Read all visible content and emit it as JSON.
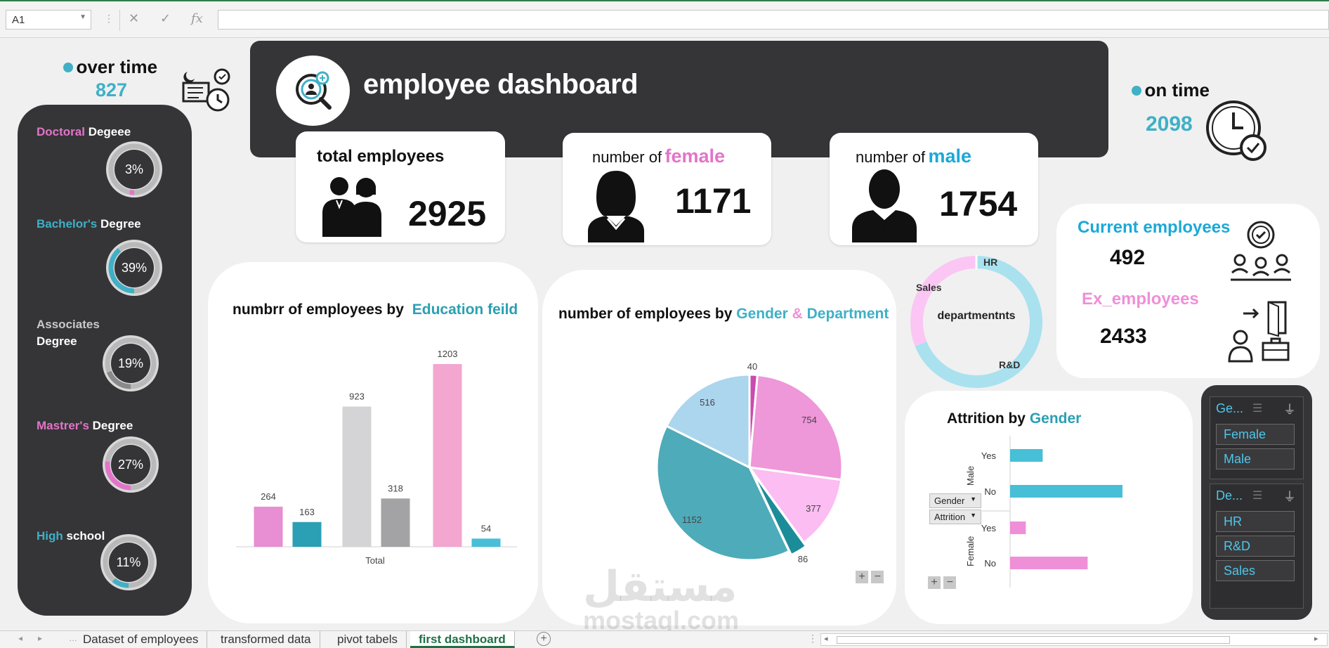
{
  "formula_bar": {
    "cell_ref": "A1",
    "cancel_glyph": "✕",
    "enter_glyph": "✓",
    "fx_label": "fx",
    "formula": ""
  },
  "kpis": {
    "overtime": {
      "label": "over time",
      "value": "827"
    },
    "ontime": {
      "label": "on time",
      "value": "2098"
    },
    "total": {
      "label": "total employees",
      "value": "2925"
    },
    "female": {
      "prefix": "number of",
      "highlight": "female",
      "value": "1171"
    },
    "male": {
      "prefix": "number of",
      "highlight": "male",
      "value": "1754"
    },
    "current": {
      "label": "Current employees",
      "value": "492"
    },
    "ex": {
      "label": "Ex_employees",
      "value": "2433"
    }
  },
  "banner": {
    "title": "employee dashboard"
  },
  "degrees": [
    {
      "first": "Doctoral",
      "second": "Degeee",
      "pct": "3%",
      "frac": 0.03,
      "color": "#e374c8",
      "first_color": "#e374c8"
    },
    {
      "first": "Bachelor's",
      "second": "Degree",
      "pct": "39%",
      "frac": 0.39,
      "color": "#3fb0c6",
      "first_color": "#3fb0c6"
    },
    {
      "first": "Associates",
      "second": "Degree",
      "pct": "19%",
      "frac": 0.19,
      "color": "#8a8a8a",
      "first_color": "#c9c9c9"
    },
    {
      "first": "Mastrer's",
      "second": "Degree",
      "pct": "27%",
      "frac": 0.27,
      "color": "#e374c8",
      "first_color": "#e374c8"
    },
    {
      "first": "High",
      "second": "school",
      "pct": "11%",
      "frac": 0.11,
      "color": "#3fb0c6",
      "first_color": "#3fb0c6"
    }
  ],
  "edu_chart": {
    "title_prefix": "numbrr of employees by",
    "title_highlight": "Education feild"
  },
  "gender_dept_chart": {
    "title_prefix": "number of employees by",
    "title_gender": "Gender",
    "title_amp": "&",
    "title_dept": "Department"
  },
  "dept_donut": {
    "center_label": "departmentnts"
  },
  "attrition": {
    "title_prefix": "Attrition by",
    "title_highlight": "Gender",
    "filters": [
      "Gender",
      "Attrition"
    ],
    "group_labels": [
      "Male",
      "Female"
    ],
    "row_labels": [
      "Yes",
      "No",
      "Yes",
      "No"
    ]
  },
  "slicers": {
    "gender": {
      "header": "Ge...",
      "items": [
        "Female",
        "Male"
      ]
    },
    "dept": {
      "header": "De...",
      "items": [
        "HR",
        "R&D",
        "Sales"
      ]
    }
  },
  "sheet_tabs": [
    "Dataset of employees",
    "transformed data",
    "pivot tabels",
    "first dashboard"
  ],
  "watermark": {
    "arabic": "مستقل",
    "latin": "mostaql.com"
  },
  "colors": {
    "pink": "#e374c8",
    "teal": "#3fb0c6",
    "dark": "#353538",
    "blue": "#1ba9d8"
  },
  "chart_data": [
    {
      "type": "bar",
      "categories": [
        "Total"
      ],
      "series_values": [
        264,
        163,
        923,
        318,
        1203,
        54
      ],
      "series_colors": [
        "#e88ed2",
        "#2b9fb3",
        "#d4d4d6",
        "#a3a3a6",
        "#f2a6d0",
        "#47bfd6"
      ],
      "title": "numbrr of employees by Education feild",
      "xlabel": "",
      "ylabel": ""
    },
    {
      "type": "pie",
      "values": [
        40,
        754,
        377,
        86,
        1152,
        516
      ],
      "colors": [
        "#c94bb0",
        "#ee97d9",
        "#fbbdf2",
        "#1d8c99",
        "#4eabb9",
        "#acd5ee"
      ],
      "title": "number of employees by Gender & Department"
    },
    {
      "type": "pie",
      "labels": [
        "HR",
        "R&D",
        "Sales"
      ],
      "fractions": [
        0.04,
        0.65,
        0.31
      ],
      "colors": [
        "#a9e1ef",
        "#a9e1ef",
        "#fbc6f4"
      ],
      "title": "departmentnts"
    },
    {
      "type": "bar",
      "orientation": "horizontal",
      "categories": [
        "Male Yes",
        "Male No",
        "Female Yes",
        "Female No"
      ],
      "values": [
        0.29,
        1.0,
        0.14,
        0.69
      ],
      "colors": [
        "#47bfd6",
        "#47bfd6",
        "#ef8fd8",
        "#ef8fd8"
      ],
      "title": "Attrition by Gender"
    }
  ]
}
